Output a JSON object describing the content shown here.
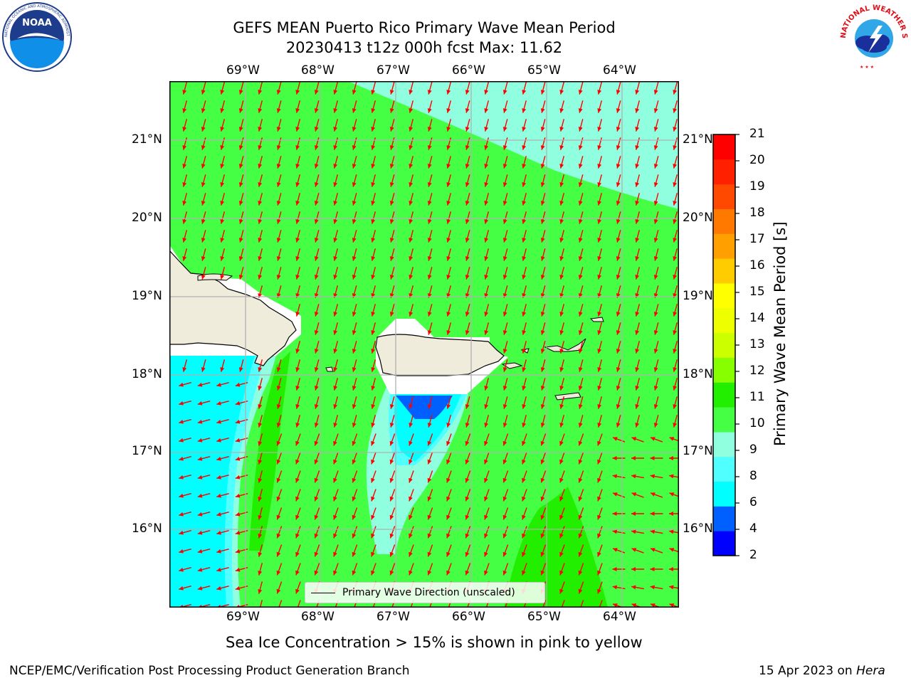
{
  "title": {
    "line1": "GEFS MEAN Puerto Rico Primary Wave Mean Period",
    "line2": "20230413 t12z 000h fcst   Max: 11.62"
  },
  "logos": {
    "left": {
      "name": "noaa-logo",
      "text": "NOAA",
      "ring": "NATIONAL OCEANIC AND ATMOSPHERIC ADMINISTRATION · U.S. DEPARTMENT OF COMMERCE"
    },
    "right": {
      "name": "nws-logo",
      "ring": "NATIONAL WEATHER SERVICE"
    }
  },
  "axes": {
    "lon_labels": [
      "69°W",
      "68°W",
      "67°W",
      "66°W",
      "65°W",
      "64°W"
    ],
    "lat_labels": [
      "21°N",
      "20°N",
      "19°N",
      "18°N",
      "17°N",
      "16°N"
    ]
  },
  "legend": {
    "label": "Primary Wave Direction (unscaled)"
  },
  "colorbar": {
    "label": "Primary Wave Mean Period [s]",
    "ticks": [
      "21",
      "20",
      "19",
      "18",
      "17",
      "16",
      "15",
      "14",
      "13",
      "12",
      "11",
      "10",
      "9",
      "8",
      "6",
      "4",
      "2"
    ],
    "colors_bottom_to_top": [
      "#0000ff",
      "#0060ff",
      "#00ffff",
      "#50ffff",
      "#90ffe0",
      "#44ff44",
      "#22ee00",
      "#88ff00",
      "#ccff00",
      "#eeff00",
      "#ffff00",
      "#ffcc00",
      "#ffa000",
      "#ff7800",
      "#ff4800",
      "#ff2000",
      "#ff0000"
    ]
  },
  "note": "Sea Ice Concentration > 15% is shown in pink to yellow",
  "footer": {
    "left": "NCEP/EMC/Verification Post Processing Product Generation Branch",
    "right_date": "15 Apr 2023 on ",
    "right_host": "Hera"
  },
  "colors": {
    "land": "#efecdc",
    "field_green": "#44ff44",
    "field_lightcyan": "#90ffe0",
    "field_cyan": "#00ffff",
    "field_midcyan": "#50ffff",
    "field_blue": "#0060ff",
    "field_dkgreen": "#22ee00",
    "arrow": "#ff0000",
    "grid": "#b0b0b0"
  }
}
